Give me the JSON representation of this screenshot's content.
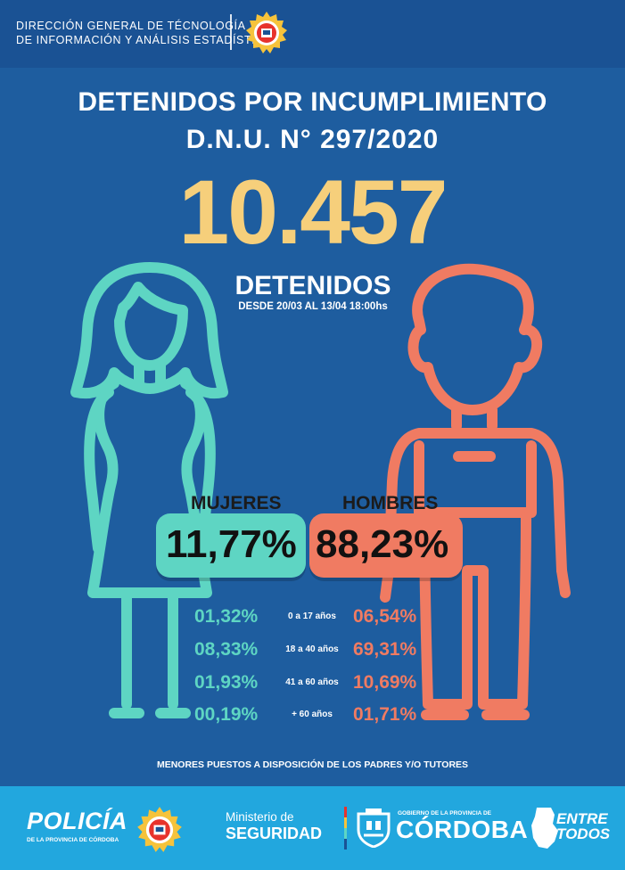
{
  "header": {
    "line1": "DIRECCIÓN GENERAL DE TÉCNOLOGÍA",
    "line2": "DE INFORMACIÓN Y ANÁLISIS ESTADÍSTICO"
  },
  "title": {
    "line1": "DETENIDOS POR INCUMPLIMIENTO",
    "line2": "D.N.U. N° 297/2020"
  },
  "total": "10.457",
  "total_label": "DETENIDOS",
  "date_range": "DESDE 20/03 AL 13/04 18:00hs",
  "women": {
    "label": "MUJERES",
    "percent": "11,77%"
  },
  "men": {
    "label": "HOMBRES",
    "percent": "88,23%"
  },
  "age_groups": [
    {
      "women": "01,32%",
      "age": "0 a 17 años",
      "men": "06,54%"
    },
    {
      "women": "08,33%",
      "age": "18 a 40 años",
      "men": "69,31%"
    },
    {
      "women": "01,93%",
      "age": "41 a 60 años",
      "men": "10,69%"
    },
    {
      "women": "00,19%",
      "age": "+ 60 años",
      "men": "01,71%"
    }
  ],
  "note": "MENORES PUESTOS A DISPOSICIÓN DE LOS PADRES Y/O TUTORES",
  "footer": {
    "policia": "POLICÍA",
    "policia_sub": "DE LA PROVINCIA DE CÓRDOBA",
    "ministerio_line1": "Ministerio de",
    "ministerio_line2": "SEGURIDAD",
    "gobierno": "GOBIERNO DE LA PROVINCIA DE",
    "cordoba": "CÓRDOBA",
    "entre": "ENTRE",
    "todos": "TODOS"
  },
  "colors": {
    "background": "#1e5d9f",
    "header": "#1a5294",
    "women": "#5ed5c3",
    "men": "#f07b62",
    "highlight": "#f6cf7b",
    "footer": "#22a7de"
  },
  "icons": {
    "police_badge": "police-badge-icon",
    "woman": "woman-figure-icon",
    "man": "man-figure-icon",
    "shield": "cordoba-shield-icon",
    "map": "cordoba-map-icon"
  }
}
